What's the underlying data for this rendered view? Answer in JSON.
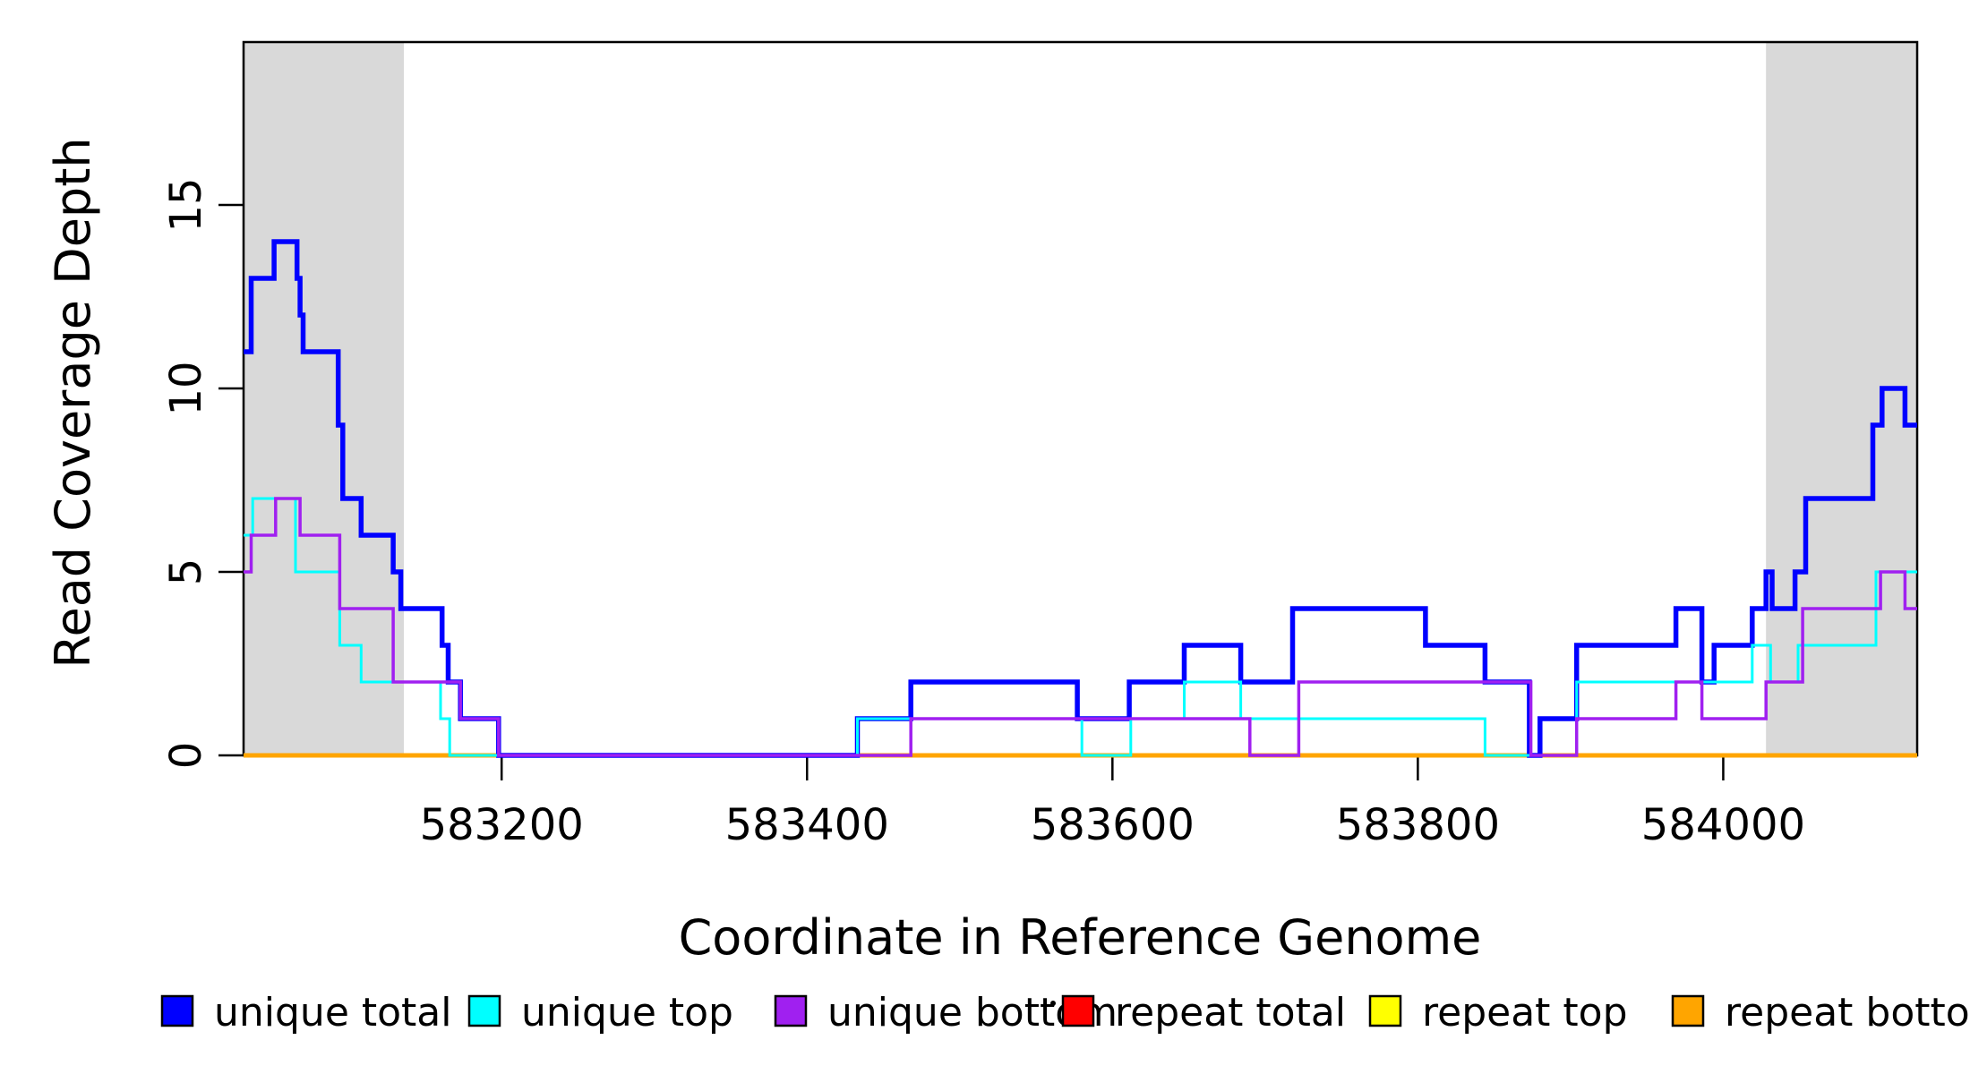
{
  "figure": {
    "background": "#ffffff",
    "frame_color": "#000000",
    "band_color": "#d9d9d9"
  },
  "x_axis": {
    "label": "Coordinate in Reference Genome",
    "tick_values": [
      583200,
      583400,
      583600,
      583800,
      584000
    ],
    "tick_labels": [
      "583200",
      "583400",
      "583600",
      "583800",
      "584000"
    ]
  },
  "y_axis": {
    "label": "Read Coverage Depth",
    "tick_values": [
      0,
      5,
      10,
      15
    ],
    "tick_labels": [
      "0",
      "5",
      "10",
      "15"
    ]
  },
  "chart_data": {
    "type": "line",
    "step": true,
    "title": "",
    "xlabel": "Coordinate in Reference Genome",
    "ylabel": "Read Coverage Depth",
    "xlim": [
      583031,
      584127
    ],
    "ylim": [
      0,
      19.44
    ],
    "grid": false,
    "legend_position": "bottom",
    "highlight_regions": [
      {
        "x0": 583031,
        "x1": 583136,
        "color": "#d9d9d9"
      },
      {
        "x0": 584028,
        "x1": 584127,
        "color": "#d9d9d9"
      }
    ],
    "series": [
      {
        "name": "unique total",
        "color": "#0000ff",
        "width": 5.5,
        "zorder": 4,
        "points": [
          [
            583031,
            11
          ],
          [
            583036,
            13
          ],
          [
            583051,
            14
          ],
          [
            583066,
            13
          ],
          [
            583068,
            12
          ],
          [
            583070,
            11
          ],
          [
            583093,
            9
          ],
          [
            583096,
            7
          ],
          [
            583108,
            6
          ],
          [
            583129,
            5
          ],
          [
            583134,
            4
          ],
          [
            583161,
            3
          ],
          [
            583165,
            2
          ],
          [
            583173,
            1
          ],
          [
            583198,
            0
          ],
          [
            583433,
            1
          ],
          [
            583468,
            2
          ],
          [
            583577,
            1
          ],
          [
            583611,
            2
          ],
          [
            583647,
            3
          ],
          [
            583684,
            2
          ],
          [
            583718,
            4
          ],
          [
            583805,
            3
          ],
          [
            583844,
            2
          ],
          [
            583873,
            0
          ],
          [
            583880,
            1
          ],
          [
            583904,
            3
          ],
          [
            583969,
            4
          ],
          [
            583986,
            2
          ],
          [
            583994,
            3
          ],
          [
            584019,
            4
          ],
          [
            584028,
            5
          ],
          [
            584032,
            4
          ],
          [
            584047,
            5
          ],
          [
            584054,
            7
          ],
          [
            584098,
            9
          ],
          [
            584104,
            10
          ],
          [
            584119,
            9
          ]
        ]
      },
      {
        "name": "unique top",
        "color": "#00ffff",
        "width": 3,
        "zorder": 5,
        "points": [
          [
            583031,
            6
          ],
          [
            583037,
            7
          ],
          [
            583065,
            5
          ],
          [
            583094,
            3
          ],
          [
            583108,
            2
          ],
          [
            583160,
            1
          ],
          [
            583166,
            0
          ],
          [
            583433,
            1
          ],
          [
            583580,
            0
          ],
          [
            583612,
            1
          ],
          [
            583647,
            2
          ],
          [
            583684,
            1
          ],
          [
            583844,
            0
          ],
          [
            583904,
            2
          ],
          [
            584019,
            3
          ],
          [
            584031,
            2
          ],
          [
            584049,
            3
          ],
          [
            584100,
            5
          ]
        ]
      },
      {
        "name": "unique bottom",
        "color": "#a020f0",
        "width": 3.5,
        "zorder": 6,
        "points": [
          [
            583031,
            5
          ],
          [
            583036,
            6
          ],
          [
            583052,
            7
          ],
          [
            583068,
            6
          ],
          [
            583094,
            4
          ],
          [
            583129,
            2
          ],
          [
            583173,
            1
          ],
          [
            583198,
            0
          ],
          [
            583468,
            1
          ],
          [
            583690,
            0
          ],
          [
            583722,
            2
          ],
          [
            583874,
            0
          ],
          [
            583904,
            1
          ],
          [
            583969,
            2
          ],
          [
            583986,
            1
          ],
          [
            584028,
            2
          ],
          [
            584052,
            4
          ],
          [
            584103,
            5
          ],
          [
            584119,
            4
          ]
        ]
      },
      {
        "name": "repeat total",
        "color": "#ff0000",
        "width": 3,
        "zorder": 1,
        "points": [
          [
            583031,
            0
          ]
        ]
      },
      {
        "name": "repeat top",
        "color": "#ffff00",
        "width": 3,
        "zorder": 2,
        "points": [
          [
            583031,
            0
          ]
        ]
      },
      {
        "name": "repeat bottom",
        "color": "#ffa500",
        "width": 5,
        "zorder": 3,
        "points": [
          [
            583031,
            0
          ]
        ]
      }
    ]
  },
  "legend": {
    "items": [
      {
        "label": "unique total",
        "color": "#0000ff"
      },
      {
        "label": "unique top",
        "color": "#00ffff"
      },
      {
        "label": "unique bottom",
        "color": "#a020f0"
      },
      {
        "label": "repeat total",
        "color": "#ff0000"
      },
      {
        "label": "repeat top",
        "color": "#ffff00"
      },
      {
        "label": "repeat bottom",
        "color": "#ffa500"
      }
    ],
    "stray_mark": "·"
  }
}
